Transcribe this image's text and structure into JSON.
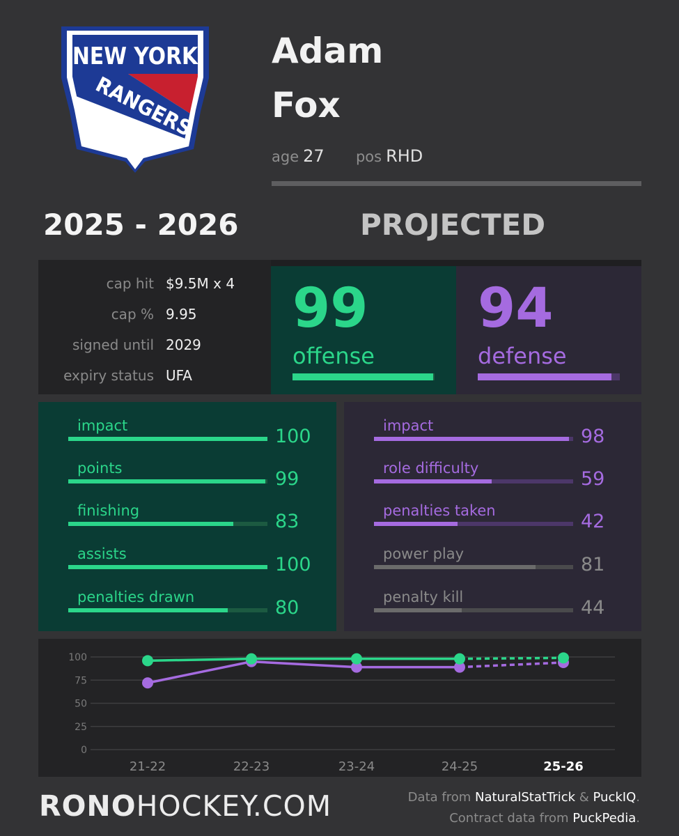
{
  "team": {
    "logo_top": "NEW YORK",
    "logo_sash": "RANGERS",
    "colors": {
      "blue": "#1d3a95",
      "red": "#c8202f",
      "white": "#ffffff"
    }
  },
  "player": {
    "first_name": "Adam",
    "last_name": "Fox",
    "age_label": "age",
    "age": "27",
    "pos_label": "pos",
    "pos": "RHD"
  },
  "season": "2025 - 2026",
  "projection_label": "PROJECTED",
  "contract": [
    {
      "label": "cap hit",
      "value": "$9.5M x 4"
    },
    {
      "label": "cap %",
      "value": "9.95"
    },
    {
      "label": "signed until",
      "value": "2029"
    },
    {
      "label": "expiry status",
      "value": "UFA"
    }
  ],
  "scores": {
    "offense": {
      "value": "99",
      "label": "offense",
      "fraction": 0.99
    },
    "defense": {
      "value": "94",
      "label": "defense",
      "fraction": 0.94
    }
  },
  "offense_stats": [
    {
      "label": "impact",
      "value": "100",
      "fraction": 1.0
    },
    {
      "label": "points",
      "value": "99",
      "fraction": 0.99
    },
    {
      "label": "finishing",
      "value": "83",
      "fraction": 0.83
    },
    {
      "label": "assists",
      "value": "100",
      "fraction": 1.0
    },
    {
      "label": "penalties drawn",
      "value": "80",
      "fraction": 0.8
    }
  ],
  "defense_stats": [
    {
      "label": "impact",
      "value": "98",
      "fraction": 0.98,
      "muted": false
    },
    {
      "label": "role difficulty",
      "value": "59",
      "fraction": 0.59,
      "muted": false
    },
    {
      "label": "penalties taken",
      "value": "42",
      "fraction": 0.42,
      "muted": false
    },
    {
      "label": "power play",
      "value": "81",
      "fraction": 0.81,
      "muted": true
    },
    {
      "label": "penalty kill",
      "value": "44",
      "fraction": 0.44,
      "muted": true
    }
  ],
  "colors": {
    "offense": "#2bd68a",
    "offense_track": "#1c5a41",
    "defense": "#a56be0",
    "defense_track": "#4c3769",
    "muted": "#6b6b6b",
    "muted_text": "#8a8a8a",
    "muted_track": "#4a4a4c"
  },
  "chart_data": {
    "type": "line",
    "x": [
      "21-22",
      "22-23",
      "23-24",
      "24-25",
      "25-26"
    ],
    "highlight_x": "25-26",
    "yticks": [
      0,
      25,
      50,
      75,
      100
    ],
    "ylim": [
      0,
      100
    ],
    "grid": true,
    "projected_from_index": 3,
    "series": [
      {
        "color": "#2bd68a",
        "values": [
          96,
          98,
          98,
          98,
          99
        ]
      },
      {
        "color": "#a56be0",
        "values": [
          72,
          95,
          89,
          89,
          94
        ]
      }
    ]
  },
  "footer": {
    "brand_bold": "RONO",
    "brand_rest": "HOCKEY.COM",
    "credit1_prefix": "Data from ",
    "credit1_src1": "NaturalStatTrick",
    "credit1_amp": " & ",
    "credit1_src2": "PuckIQ",
    "credit1_end": ".",
    "credit2_prefix": "Contract data from ",
    "credit2_src": "PuckPedia",
    "credit2_end": "."
  }
}
